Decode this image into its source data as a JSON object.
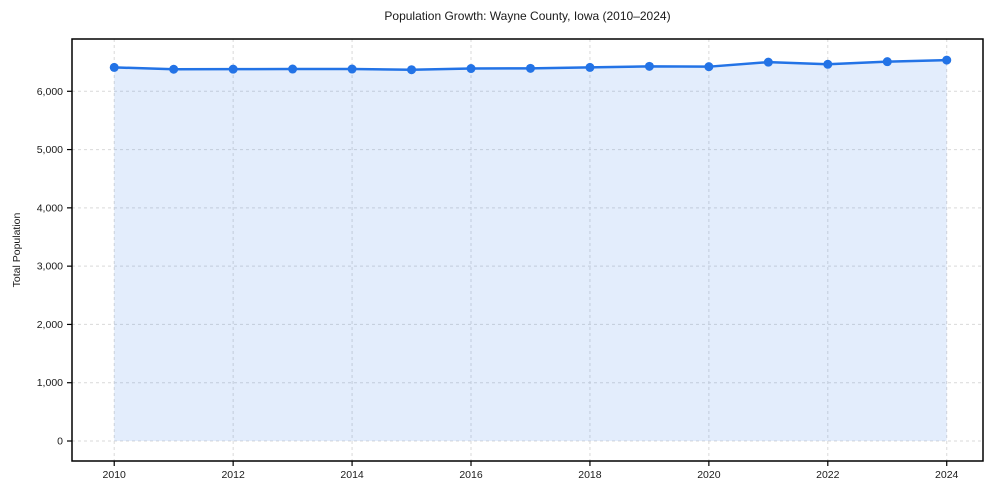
{
  "page": {
    "background_color": "#ffffff"
  },
  "chart_data": {
    "type": "line",
    "title": "Population Growth: Wayne County, Iowa (2010–2024)",
    "xlabel": "",
    "ylabel": "Total Population",
    "x": [
      2010,
      2011,
      2012,
      2013,
      2014,
      2015,
      2016,
      2017,
      2018,
      2019,
      2020,
      2021,
      2022,
      2023,
      2024
    ],
    "series": [
      {
        "name": "Total Population",
        "values": [
          6410,
          6378,
          6380,
          6382,
          6382,
          6370,
          6390,
          6394,
          6410,
          6428,
          6422,
          6500,
          6463,
          6508,
          6535
        ]
      }
    ],
    "x_ticks": [
      2010,
      2012,
      2014,
      2016,
      2018,
      2020,
      2022,
      2024
    ],
    "y_ticks": [
      0,
      1000,
      2000,
      3000,
      4000,
      5000,
      6000
    ],
    "y_tick_labels": [
      "0",
      "1,000",
      "2,000",
      "3,000",
      "4,000",
      "5,000",
      "6,000"
    ],
    "xlim": [
      2009.29,
      2024.61
    ],
    "ylim": [
      -343,
      6897
    ],
    "grid": true,
    "grid_style": "dashed",
    "legend_position": "none",
    "area_fill_to_baseline": 0,
    "colors": {
      "line": "#2373e6",
      "marker": "#2373e6",
      "area_fill": "rgba(35, 115, 230, 0.13)",
      "gridline": "#d9d9d9",
      "frame": "#000000",
      "text": "#1a1a1a"
    },
    "marker_shape": "circle",
    "marker_radius": 4.5,
    "line_width": 2.5
  }
}
